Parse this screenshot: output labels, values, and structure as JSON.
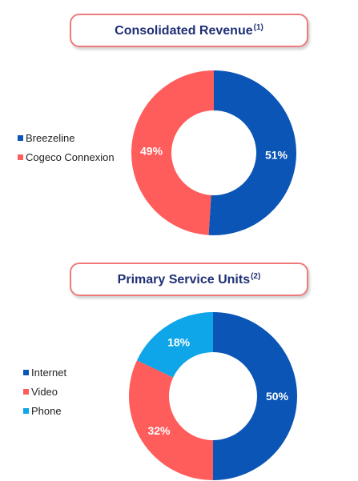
{
  "chart_data": [
    {
      "type": "pie",
      "title": "Consolidated Revenue",
      "title_note": "(1)",
      "categories": [
        "Breezeline",
        "Cogeco Connexion"
      ],
      "values": [
        51,
        49
      ],
      "value_labels": [
        "51%",
        "49%"
      ],
      "colors": [
        "#0a55b5",
        "#ff5c5c"
      ],
      "legend_placement": "left"
    },
    {
      "type": "pie",
      "title": "Primary Service Units",
      "title_note": "(2)",
      "categories": [
        "Internet",
        "Video",
        "Phone"
      ],
      "values": [
        50,
        32,
        18
      ],
      "value_labels": [
        "50%",
        "32%",
        "18%"
      ],
      "colors": [
        "#0a55b5",
        "#ff5c5c",
        "#0ea5e9"
      ],
      "legend_placement": "left"
    }
  ]
}
